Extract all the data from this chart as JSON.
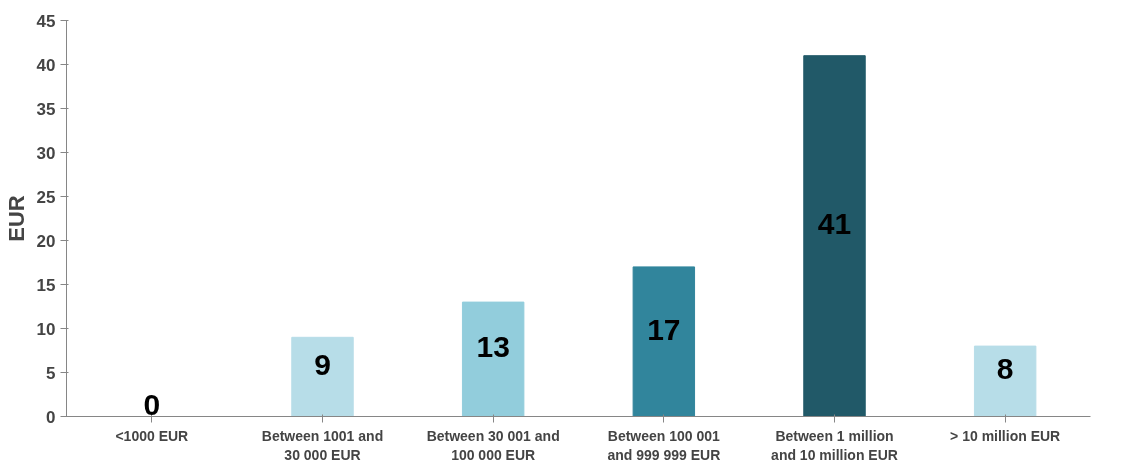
{
  "chart_data": {
    "type": "bar",
    "ylabel": "EUR",
    "categories": [
      "<1000 EUR",
      "Between 1001 and\n30 000 EUR",
      "Between 30 001 and\n100 000 EUR",
      "Between 100 001\nand 999 999 EUR",
      "Between 1 million\nand 10 million EUR",
      "> 10 million EUR"
    ],
    "values": [
      0,
      9,
      13,
      17,
      41,
      8
    ],
    "colors": [
      "#b7dde8",
      "#b7dde8",
      "#92cddc",
      "#31859c",
      "#215968",
      "#b7dde8"
    ],
    "ylim": [
      0,
      45
    ],
    "yticks": [
      0,
      5,
      10,
      15,
      20,
      25,
      30,
      35,
      40,
      45
    ],
    "data_labels": true,
    "grid": false
  }
}
